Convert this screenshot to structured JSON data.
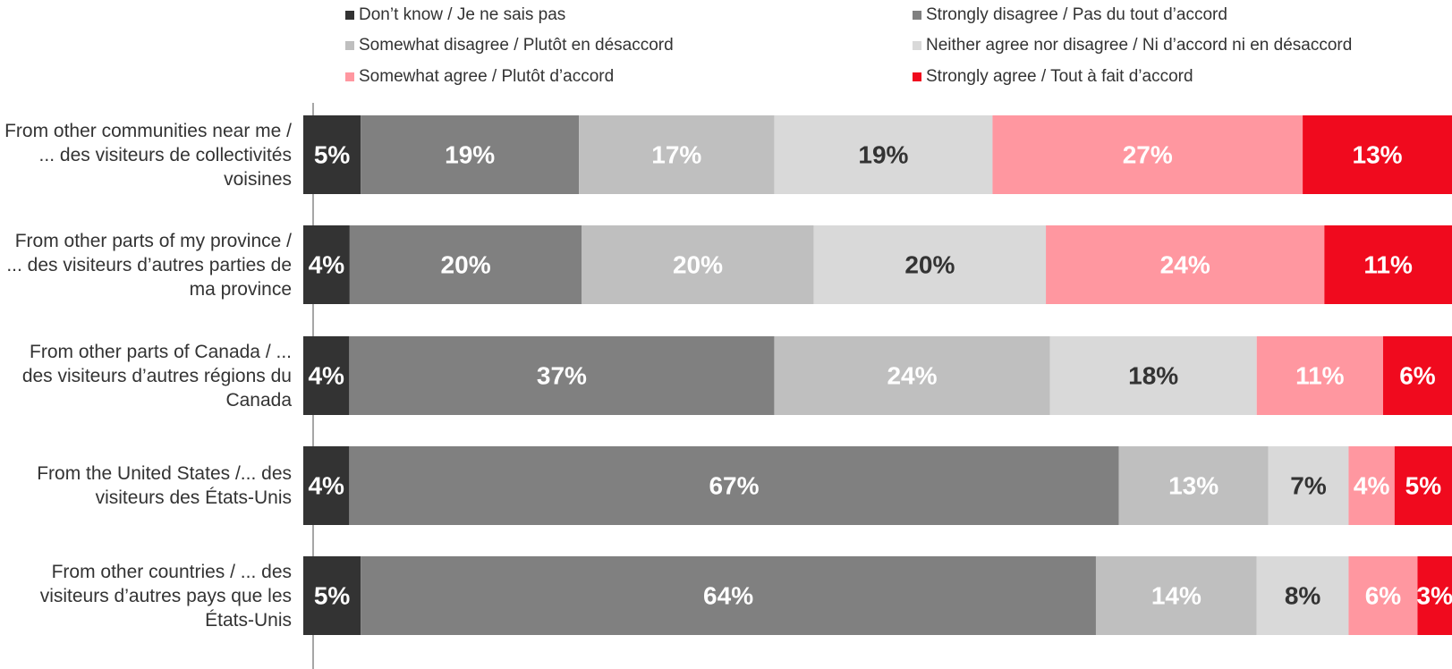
{
  "chart_data": {
    "type": "bar",
    "orientation": "horizontal",
    "stacked": "percent",
    "categories": [
      "From other communities near me / ... des visiteurs de collectivités voisines",
      "From other parts of my province / ... des visiteurs d’autres parties de ma province",
      "From other parts of Canada / ... des visiteurs d’autres régions du Canada",
      "From the United States /... des visiteurs des États-Unis",
      "From other countries / ... des visiteurs d’autres pays que les États-Unis"
    ],
    "series": [
      {
        "name": "Don’t know / Je ne sais pas",
        "color": "#333333",
        "values": [
          5,
          4,
          4,
          4,
          5
        ],
        "labels": [
          "5%",
          "4%",
          "4%",
          "4%",
          "5%"
        ]
      },
      {
        "name": "Strongly disagree / Pas du tout d’accord",
        "color": "#808080",
        "values": [
          19,
          20,
          37,
          67,
          64
        ],
        "labels": [
          "19%",
          "20%",
          "37%",
          "67%",
          "64%"
        ]
      },
      {
        "name": "Somewhat disagree / Plutôt en désaccord",
        "color": "#bfbfbf",
        "values": [
          17,
          20,
          24,
          13,
          14
        ],
        "labels": [
          "17%",
          "20%",
          "24%",
          "13%",
          "14%"
        ]
      },
      {
        "name": "Neither agree nor disagree / Ni d’accord ni en désaccord",
        "color": "#d9d9d9",
        "values": [
          19,
          20,
          18,
          7,
          8
        ],
        "labels": [
          "19%",
          "20%",
          "18%",
          "7%",
          "8%"
        ]
      },
      {
        "name": "Somewhat agree / Plutôt d’accord",
        "color": "#ff97a0",
        "values": [
          27,
          24,
          11,
          4,
          6
        ],
        "labels": [
          "27%",
          "24%",
          "11%",
          "4%",
          "6%"
        ]
      },
      {
        "name": "Strongly agree / Tout à fait d’accord",
        "color": "#f00a1e",
        "values": [
          13,
          11,
          6,
          5,
          3
        ],
        "labels": [
          "13%",
          "11%",
          "6%",
          "5%",
          "3%"
        ]
      }
    ],
    "label_colors": [
      "#ffffff",
      "#ffffff",
      "#ffffff",
      "#333333",
      "#ffffff",
      "#ffffff"
    ],
    "legend": {
      "position": "top",
      "columns": 2
    },
    "grid": false
  }
}
